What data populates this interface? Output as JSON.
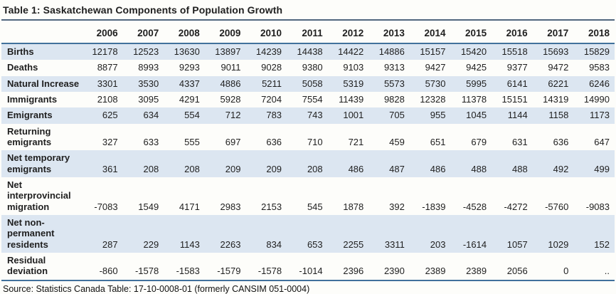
{
  "title": "Table 1: Saskatchewan Components of Population Growth",
  "source": "Source: Statistics Canada Table: 17-10-0008-01 (formerly CANSIM 051-0004)",
  "colors": {
    "row_highlight": "#dce6f1",
    "title_rule": "#51677e",
    "table_rule": "#41719c",
    "text": "#1f1f1f"
  },
  "chart_data": {
    "type": "table",
    "title": "Table 1: Saskatchewan Components of Population Growth",
    "categories": [
      "2006",
      "2007",
      "2008",
      "2009",
      "2010",
      "2011",
      "2012",
      "2013",
      "2014",
      "2015",
      "2016",
      "2017",
      "2018"
    ],
    "series": [
      {
        "name": "Births",
        "values": [
          12178,
          12523,
          13630,
          13897,
          14239,
          14438,
          14422,
          14886,
          15157,
          15420,
          15518,
          15693,
          15829
        ]
      },
      {
        "name": "Deaths",
        "values": [
          8877,
          8993,
          9293,
          9011,
          9028,
          9380,
          9103,
          9313,
          9427,
          9425,
          9377,
          9472,
          9583
        ]
      },
      {
        "name": "Natural Increase",
        "values": [
          3301,
          3530,
          4337,
          4886,
          5211,
          5058,
          5319,
          5573,
          5730,
          5995,
          6141,
          6221,
          6246
        ]
      },
      {
        "name": "Immigrants",
        "values": [
          2108,
          3095,
          4291,
          5928,
          7204,
          7554,
          11439,
          9828,
          12328,
          11378,
          15151,
          14319,
          14990
        ]
      },
      {
        "name": "Emigrants",
        "values": [
          625,
          634,
          554,
          712,
          783,
          743,
          1001,
          705,
          955,
          1045,
          1144,
          1158,
          1173
        ]
      },
      {
        "name": "Returning emigrants",
        "values": [
          327,
          633,
          555,
          697,
          636,
          710,
          721,
          459,
          651,
          679,
          631,
          636,
          647
        ]
      },
      {
        "name": "Net temporary emigrants",
        "values": [
          361,
          208,
          208,
          209,
          209,
          208,
          486,
          487,
          486,
          488,
          488,
          492,
          499
        ]
      },
      {
        "name": "Net interprovincial migration",
        "values": [
          -7083,
          1549,
          4171,
          2983,
          2153,
          545,
          1878,
          392,
          -1839,
          -4528,
          -4272,
          -5760,
          -9083
        ]
      },
      {
        "name": "Net non-permanent residents",
        "values": [
          287,
          229,
          1143,
          2263,
          834,
          653,
          2255,
          3311,
          203,
          -1614,
          1057,
          1029,
          152
        ]
      },
      {
        "name": "Residual deviation",
        "values": [
          -860,
          -1578,
          -1583,
          -1579,
          -1578,
          -1014,
          2396,
          2390,
          2389,
          2389,
          2056,
          0,
          ".."
        ]
      }
    ],
    "source": "Source: Statistics Canada Table: 17-10-0008-01 (formerly CANSIM 051-0004)",
    "layout": {
      "striped_rows": "odd",
      "grid": "off",
      "value_alignment": "right"
    }
  }
}
